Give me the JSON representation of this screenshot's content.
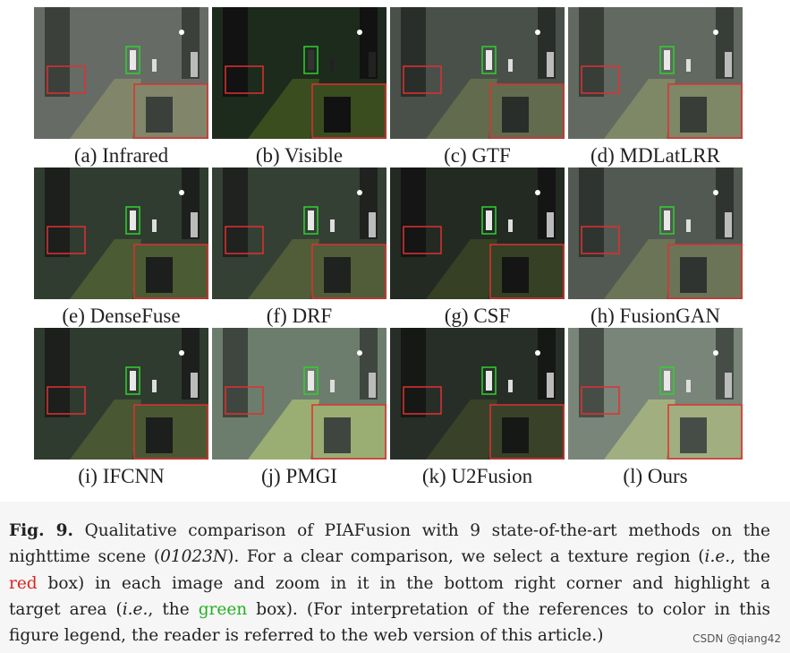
{
  "figure": {
    "panels": [
      "(a) Infrared",
      "(b) Visible",
      "(c) GTF",
      "(d) MDLatLRR",
      "(e) DenseFuse",
      "(f) DRF",
      "(g) CSF",
      "(h) FusionGAN",
      "(i) IFCNN",
      "(j) PMGI",
      "(k) U2Fusion",
      "(l) Ours"
    ]
  },
  "caption": {
    "lines": [
      [
        "Fig. 9.",
        " Qualitative comparison of PIAFusion with 9 state-of-the-art methods on the"
      ],
      [
        "nighttime scene (",
        "01023N",
        "). For a clear comparison, we select a texture region (",
        "i.e.",
        ", the"
      ],
      [
        "red",
        " box) in each image and zoom in it in the bottom right corner and highlight a"
      ],
      [
        "target area (",
        "i.e.",
        ", the ",
        "green",
        " box). (For interpretation of the references to color in this"
      ],
      [
        "figure legend, the reader is referred to the web version of this article.)"
      ]
    ]
  },
  "watermark": "CSDN @qiang42"
}
